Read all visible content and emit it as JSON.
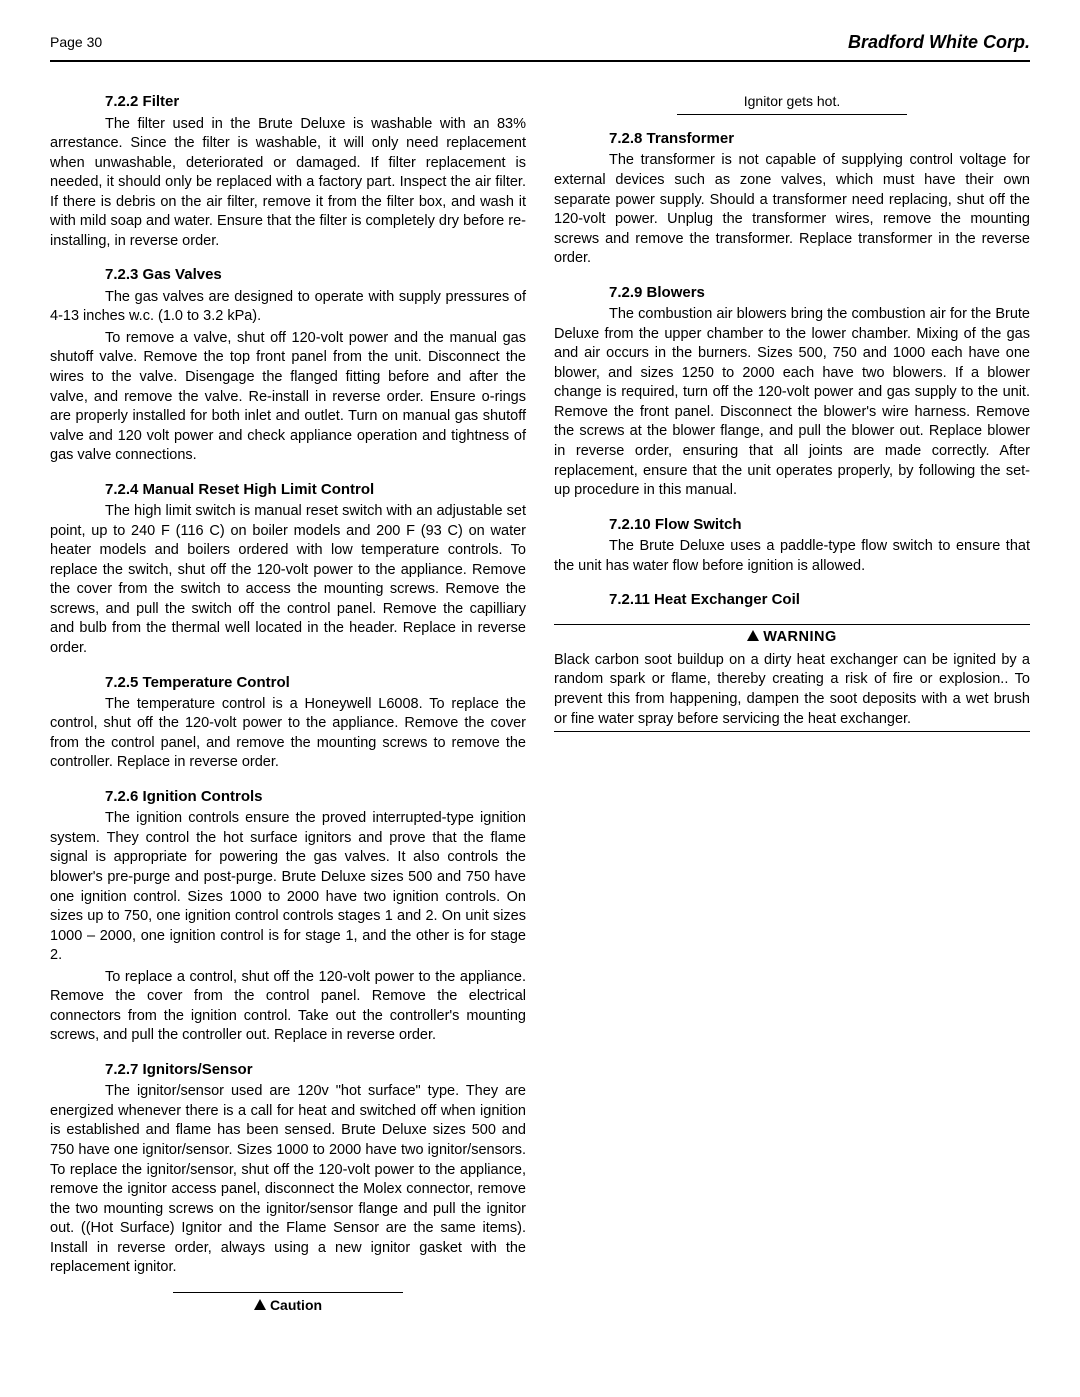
{
  "header": {
    "page_label": "Page 30",
    "brand": "Bradford White Corp."
  },
  "sections": [
    {
      "num": "7.2.2",
      "title": "Filter",
      "paras": [
        "The filter used in the Brute Deluxe is washable with an 83% arrestance. Since the filter is washable, it will only need replacement when unwashable, deteriorated or damaged. If filter replacement is needed, it should only be replaced with a factory part. Inspect the air filter. If there is debris on the air filter, remove it from the filter box, and wash it with mild soap and water. Ensure that the filter is completely dry before re-installing, in reverse order."
      ]
    },
    {
      "num": "7.2.3",
      "title": "Gas Valves",
      "paras": [
        "The gas valves are designed to operate with supply pressures of 4-13 inches w.c. (1.0 to 3.2 kPa).",
        "To remove a valve, shut off 120-volt power and the manual gas shutoff valve. Remove the top front panel from the unit. Disconnect the wires to the valve. Disengage the flanged fitting before and after the valve, and remove the valve. Re-install in reverse order. Ensure o-rings are properly installed for both inlet and outlet. Turn on manual gas shutoff valve and 120 volt power and check appliance operation and tightness of gas valve connections."
      ]
    },
    {
      "num": "7.2.4",
      "title": "Manual Reset High Limit Control",
      "paras": [
        "The high limit switch is manual reset switch with an adjustable set point, up to 240 F (116 C) on boiler models and 200 F (93 C) on water heater models and boilers ordered with low temperature controls. To replace the switch, shut off the 120-volt power to the appliance. Remove the cover from the switch to access the mounting screws. Remove the screws, and pull the switch off the control panel. Remove the capilliary and bulb from the thermal well located in the header. Replace in reverse order."
      ]
    },
    {
      "num": "7.2.5",
      "title": "Temperature Control",
      "paras": [
        "The temperature control is a Honeywell L6008. To replace the control, shut off the 120-volt power to the appliance. Remove the cover from the control panel, and remove the mounting screws to remove the controller. Replace in reverse order."
      ]
    },
    {
      "num": "7.2.6",
      "title": "Ignition Controls",
      "paras": [
        "The ignition controls ensure the proved interrupted-type ignition system. They control the hot surface ignitors and prove that the flame signal is appropriate for powering the gas valves. It also controls the blower's pre-purge and post-purge. Brute Deluxe sizes 500 and 750 have one ignition control. Sizes 1000 to 2000 have two ignition controls. On sizes up to 750, one ignition control controls stages 1 and 2. On unit sizes 1000 – 2000, one ignition control is for stage 1, and the other is for stage 2.",
        "To replace a control, shut off the 120-volt power to the appliance. Remove the cover from the control panel. Remove the electrical connectors from the ignition control. Take out the controller's mounting screws, and pull the controller out. Replace in reverse order."
      ]
    },
    {
      "num": "7.2.7",
      "title": "Ignitors/Sensor",
      "paras": [
        "The ignitor/sensor used are 120v \"hot surface\" type. They are energized whenever there is a call for heat and switched off when ignition is established and flame has been sensed. Brute Deluxe sizes 500 and 750 have one ignitor/sensor. Sizes 1000 to 2000 have two ignitor/sensors. To replace the ignitor/sensor, shut off the 120-volt power to the appliance, remove the ignitor access panel, disconnect the Molex connector, remove the two mounting screws on the ignitor/sensor flange and pull the ignitor out. ((Hot Surface) Ignitor and the Flame Sensor are the same items). Install in reverse order, always using a new ignitor gasket with the replacement ignitor."
      ]
    },
    {
      "type": "caution",
      "label": "Caution",
      "text": "Ignitor gets hot."
    },
    {
      "num": "7.2.8",
      "title": "Transformer",
      "paras": [
        "The transformer is not capable of supplying control voltage for external devices such as zone valves, which must have their own separate power supply. Should a transformer need replacing, shut off the 120-volt power. Unplug the transformer wires, remove the mounting screws and remove the transformer. Replace transformer in the reverse order."
      ]
    },
    {
      "num": "7.2.9",
      "title": "Blowers",
      "paras": [
        "The combustion air blowers bring the combustion air for the Brute Deluxe from the upper chamber to the lower chamber. Mixing of the gas and air occurs in the burners. Sizes 500, 750 and 1000 each have one blower, and sizes 1250 to 2000 each have two blowers. If a blower change is required, turn off the 120-volt power and gas supply to the unit. Remove the front panel. Disconnect the blower's wire harness. Remove the screws at the blower flange, and pull the blower out. Replace blower in reverse order, ensuring that all joints are made correctly. After replacement, ensure that the unit operates properly, by following the set-up procedure in this manual."
      ]
    },
    {
      "num": "7.2.10",
      "title": "Flow Switch",
      "paras": [
        "The Brute Deluxe uses a paddle-type flow switch to ensure that the unit has water flow before ignition is allowed."
      ]
    },
    {
      "num": "7.2.11",
      "title": "Heat Exchanger Coil",
      "paras": []
    },
    {
      "type": "warning",
      "label": "WARNING",
      "text": "Black carbon soot buildup on a dirty heat exchanger can be ignited by a random spark or flame, thereby creating a risk of fire or explosion.. To prevent this from happening, dampen the soot deposits with a wet brush or fine water spray before servicing the heat exchanger."
    }
  ]
}
